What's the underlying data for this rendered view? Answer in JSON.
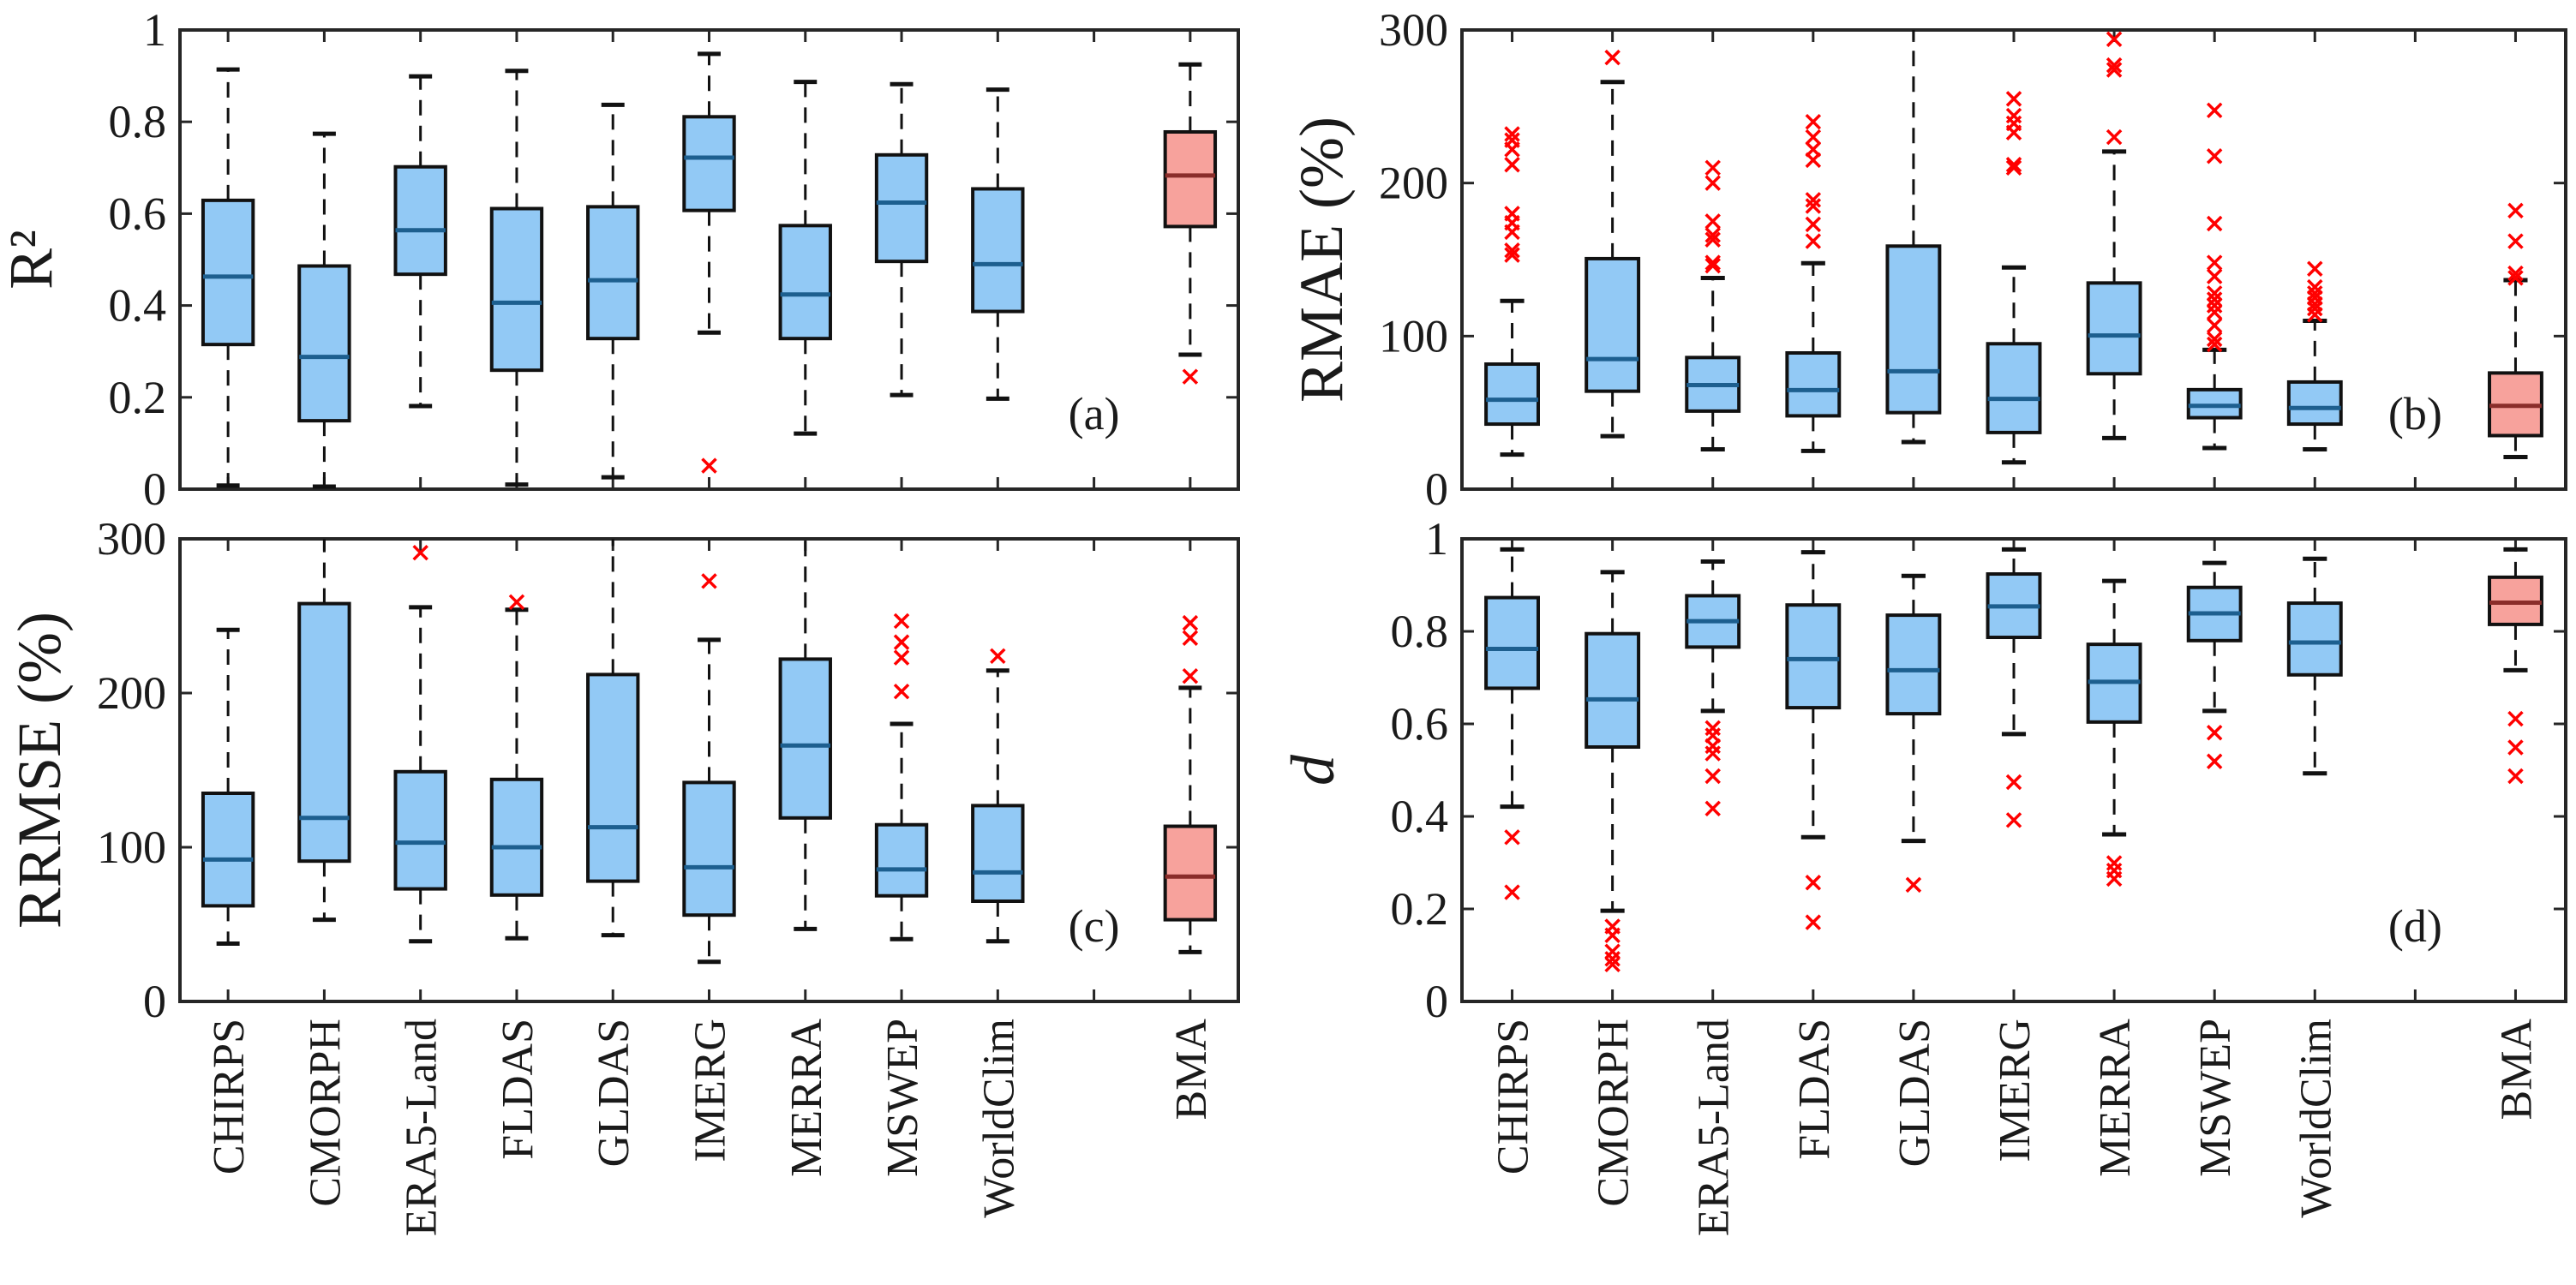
{
  "colors": {
    "box_fill": "#92c9f5",
    "box_median": "#1d5f8f",
    "bma_fill": "#f7a29c",
    "bma_median": "#8a2d2a",
    "outlier": "#ff0000",
    "axis": "#262626"
  },
  "categories": [
    "CHIRPS",
    "CMORPH",
    "ERA5-Land",
    "FLDAS",
    "GLDAS",
    "IMERG",
    "MERRA",
    "MSWEP",
    "WorldClim",
    "BMA"
  ],
  "chart_data": [
    {
      "type": "box",
      "panel_label": "(a)",
      "ylabel": "R²",
      "ylabel_italic": false,
      "ylim": [
        0,
        1
      ],
      "yticks": [
        "0",
        "0.2",
        "0.4",
        "0.6",
        "0.8",
        "1"
      ],
      "ytick_values": [
        0,
        0.2,
        0.4,
        0.6,
        0.8,
        1
      ],
      "boxes": [
        {
          "lo": 0.008,
          "q1": 0.315,
          "med": 0.463,
          "q3": 0.629,
          "hi": 0.914,
          "outliers": []
        },
        {
          "lo": 0.0,
          "q1": 0.149,
          "med": 0.288,
          "q3": 0.486,
          "hi": 0.774,
          "outliers": []
        },
        {
          "lo": 0.181,
          "q1": 0.468,
          "med": 0.564,
          "q3": 0.702,
          "hi": 0.899,
          "outliers": []
        },
        {
          "lo": 0.01,
          "q1": 0.259,
          "med": 0.406,
          "q3": 0.611,
          "hi": 0.911,
          "outliers": []
        },
        {
          "lo": 0.026,
          "q1": 0.328,
          "med": 0.455,
          "q3": 0.615,
          "hi": 0.837,
          "outliers": []
        },
        {
          "lo": 0.341,
          "q1": 0.607,
          "med": 0.722,
          "q3": 0.811,
          "hi": 0.948,
          "outliers": [
            0.051
          ]
        },
        {
          "lo": 0.121,
          "q1": 0.328,
          "med": 0.424,
          "q3": 0.574,
          "hi": 0.887,
          "outliers": []
        },
        {
          "lo": 0.205,
          "q1": 0.496,
          "med": 0.624,
          "q3": 0.728,
          "hi": 0.882,
          "outliers": []
        },
        {
          "lo": 0.197,
          "q1": 0.387,
          "med": 0.49,
          "q3": 0.654,
          "hi": 0.87,
          "outliers": []
        },
        {
          "lo": 0.293,
          "q1": 0.572,
          "med": 0.683,
          "q3": 0.778,
          "hi": 0.925,
          "outliers": [
            0.245
          ]
        }
      ]
    },
    {
      "type": "box",
      "panel_label": "(b)",
      "ylabel": "RMAE (%)",
      "ylabel_italic": false,
      "ylim": [
        0,
        300
      ],
      "yticks": [
        "0",
        "100",
        "200",
        "300"
      ],
      "ytick_values": [
        0,
        100,
        200,
        300
      ],
      "boxes": [
        {
          "lo": 22.6,
          "q1": 42.5,
          "med": 58.4,
          "q3": 81.7,
          "hi": 123,
          "outliers": [
            232,
            228,
            222,
            212,
            180,
            174,
            168,
            156,
            153
          ]
        },
        {
          "lo": 34.6,
          "q1": 64,
          "med": 85,
          "q3": 150.6,
          "hi": 266,
          "outliers": [
            282
          ]
        },
        {
          "lo": 26,
          "q1": 51,
          "med": 68,
          "q3": 86,
          "hi": 138,
          "outliers": [
            210,
            200,
            175,
            166,
            163,
            148,
            146
          ]
        },
        {
          "lo": 25,
          "q1": 47.9,
          "med": 64.7,
          "q3": 89,
          "hi": 147.6,
          "outliers": [
            240,
            230,
            222,
            215,
            189,
            185,
            173,
            162
          ]
        },
        {
          "lo": 30.8,
          "q1": 50,
          "med": 77,
          "q3": 158.8,
          "hi": 300,
          "outliers": []
        },
        {
          "lo": 17.5,
          "q1": 37,
          "med": 59,
          "q3": 95,
          "hi": 144.8,
          "outliers": [
            255,
            244,
            239,
            233,
            212,
            210
          ]
        },
        {
          "lo": 33.4,
          "q1": 75.4,
          "med": 100.4,
          "q3": 134.7,
          "hi": 220.6,
          "outliers": [
            294,
            277,
            274,
            230
          ]
        },
        {
          "lo": 26.9,
          "q1": 46.7,
          "med": 54.4,
          "q3": 65,
          "hi": 91,
          "outliers": [
            247.5,
            217.6,
            173.5,
            148,
            139,
            128,
            124,
            120,
            115.6,
            107,
            98,
            94.6
          ]
        },
        {
          "lo": 26,
          "q1": 42.5,
          "med": 53,
          "q3": 70,
          "hi": 110,
          "outliers": [
            144,
            132,
            128,
            125,
            121,
            118,
            114
          ]
        },
        {
          "lo": 21,
          "q1": 35,
          "med": 54.4,
          "q3": 75.9,
          "hi": 136.6,
          "outliers": [
            182,
            162,
            141,
            138
          ]
        }
      ]
    },
    {
      "type": "box",
      "panel_label": "(c)",
      "ylabel": "RRMSE (%)",
      "ylabel_italic": false,
      "ylim": [
        0,
        300
      ],
      "yticks": [
        "0",
        "100",
        "200",
        "300"
      ],
      "ytick_values": [
        0,
        100,
        200,
        300
      ],
      "boxes": [
        {
          "lo": 37.5,
          "q1": 62,
          "med": 92,
          "q3": 135,
          "hi": 241,
          "outliers": []
        },
        {
          "lo": 53,
          "q1": 91,
          "med": 119,
          "q3": 258,
          "hi": 300,
          "outliers": []
        },
        {
          "lo": 39,
          "q1": 73,
          "med": 103,
          "q3": 149,
          "hi": 255.6,
          "outliers": [
            291
          ]
        },
        {
          "lo": 41,
          "q1": 69,
          "med": 100,
          "q3": 144,
          "hi": 254,
          "outliers": [
            259
          ]
        },
        {
          "lo": 43,
          "q1": 78,
          "med": 113,
          "q3": 212,
          "hi": 300,
          "outliers": []
        },
        {
          "lo": 25.7,
          "q1": 56,
          "med": 87,
          "q3": 142,
          "hi": 234.5,
          "outliers": [
            272.6
          ]
        },
        {
          "lo": 47,
          "q1": 119,
          "med": 166,
          "q3": 222,
          "hi": 300,
          "outliers": []
        },
        {
          "lo": 40.4,
          "q1": 68.5,
          "med": 85.6,
          "q3": 114.6,
          "hi": 180,
          "outliers": [
            246.7,
            233,
            223,
            201
          ]
        },
        {
          "lo": 39,
          "q1": 65,
          "med": 83.7,
          "q3": 127,
          "hi": 214.6,
          "outliers": [
            224
          ]
        },
        {
          "lo": 32,
          "q1": 53,
          "med": 81,
          "q3": 113.6,
          "hi": 203.4,
          "outliers": [
            245.5,
            235.7,
            211
          ]
        }
      ]
    },
    {
      "type": "box",
      "panel_label": "(d)",
      "ylabel": "d",
      "ylabel_italic": true,
      "ylim": [
        0,
        1
      ],
      "yticks": [
        "0",
        "0.2",
        "0.4",
        "0.6",
        "0.8",
        "1"
      ],
      "ytick_values": [
        0,
        0.2,
        0.4,
        0.6,
        0.8,
        1
      ],
      "boxes": [
        {
          "lo": 0.421,
          "q1": 0.677,
          "med": 0.762,
          "q3": 0.873,
          "hi": 0.977,
          "outliers": [
            0.355,
            0.236
          ]
        },
        {
          "lo": 0.196,
          "q1": 0.55,
          "med": 0.653,
          "q3": 0.795,
          "hi": 0.928,
          "outliers": [
            0.162,
            0.143,
            0.108,
            0.092,
            0.08
          ]
        },
        {
          "lo": 0.628,
          "q1": 0.766,
          "med": 0.822,
          "q3": 0.877,
          "hi": 0.951,
          "outliers": [
            0.591,
            0.575,
            0.552,
            0.536,
            0.487,
            0.417
          ]
        },
        {
          "lo": 0.355,
          "q1": 0.635,
          "med": 0.74,
          "q3": 0.857,
          "hi": 0.971,
          "outliers": [
            0.257,
            0.171
          ]
        },
        {
          "lo": 0.347,
          "q1": 0.622,
          "med": 0.716,
          "q3": 0.835,
          "hi": 0.92,
          "outliers": [
            0.252
          ]
        },
        {
          "lo": 0.578,
          "q1": 0.787,
          "med": 0.854,
          "q3": 0.924,
          "hi": 0.977,
          "outliers": [
            0.474,
            0.392
          ]
        },
        {
          "lo": 0.361,
          "q1": 0.604,
          "med": 0.691,
          "q3": 0.772,
          "hi": 0.909,
          "outliers": [
            0.299,
            0.283,
            0.265
          ]
        },
        {
          "lo": 0.628,
          "q1": 0.78,
          "med": 0.839,
          "q3": 0.895,
          "hi": 0.948,
          "outliers": [
            0.581,
            0.519
          ]
        },
        {
          "lo": 0.493,
          "q1": 0.706,
          "med": 0.776,
          "q3": 0.861,
          "hi": 0.957,
          "outliers": []
        },
        {
          "lo": 0.716,
          "q1": 0.815,
          "med": 0.862,
          "q3": 0.917,
          "hi": 0.977,
          "outliers": [
            0.611,
            0.549,
            0.487
          ]
        }
      ]
    }
  ]
}
